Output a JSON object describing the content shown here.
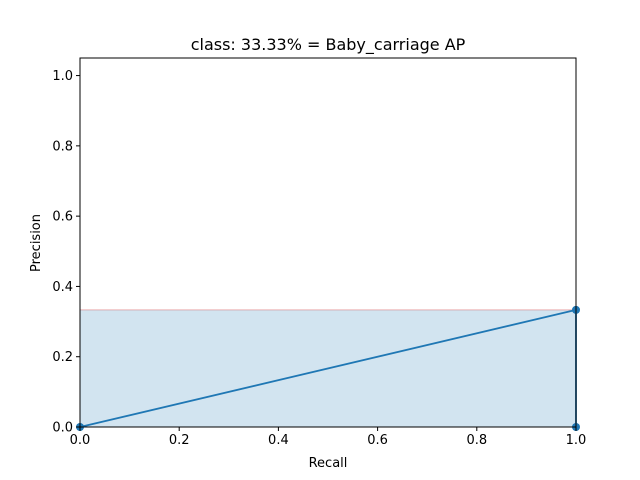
{
  "chart_data": {
    "type": "area",
    "title": "class: 33.33% = Baby_carriage AP",
    "xlabel": "Recall",
    "ylabel": "Precision",
    "xlim": [
      0.0,
      1.0
    ],
    "ylim": [
      0.0,
      1.05
    ],
    "xticks": [
      0.0,
      0.2,
      0.4,
      0.6,
      0.8,
      1.0
    ],
    "yticks": [
      0.0,
      0.2,
      0.4,
      0.6,
      0.8,
      1.0
    ],
    "xtick_labels": [
      "0.0",
      "0.2",
      "0.4",
      "0.6",
      "0.8",
      "1.0"
    ],
    "ytick_labels": [
      "0.0",
      "0.2",
      "0.4",
      "0.6",
      "0.8",
      "1.0"
    ],
    "grid": false,
    "series": [
      {
        "kind": "line",
        "color": "#1f77b4",
        "x": [
          0.0,
          1.0,
          1.0
        ],
        "y": [
          0.0,
          0.3333,
          0.0
        ]
      },
      {
        "kind": "filled-area",
        "color": "#1f77b4",
        "alpha": 0.2,
        "edge_color": "#d62728",
        "x": [
          0.0,
          1.0
        ],
        "y": [
          0.3333,
          0.3333
        ]
      }
    ]
  }
}
